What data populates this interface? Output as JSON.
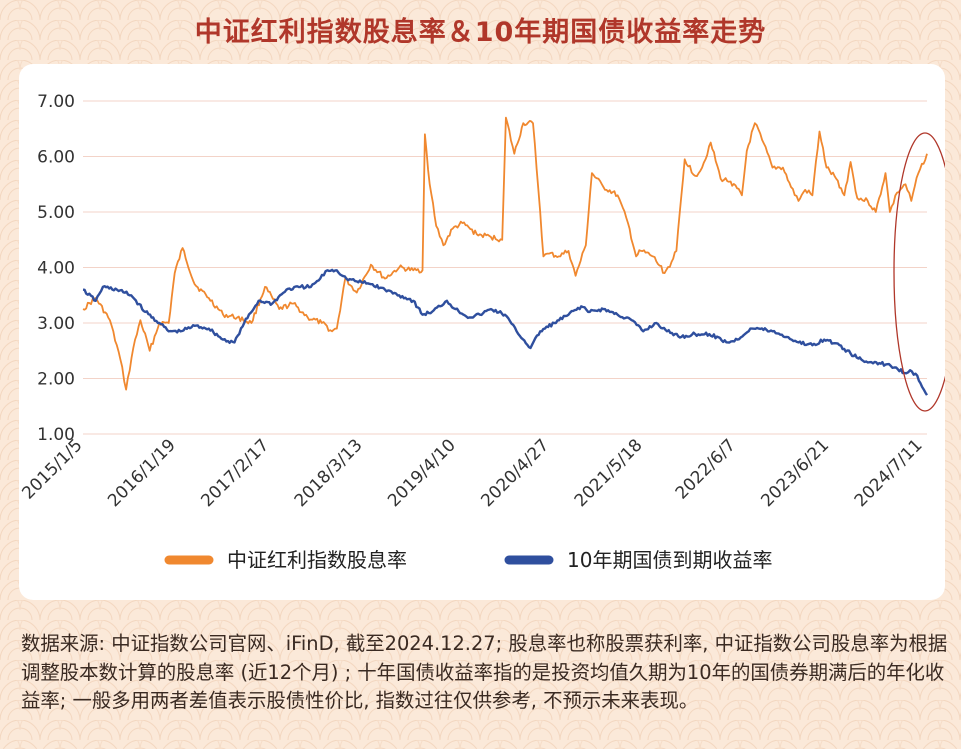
{
  "title": "中证红利指数股息率＆10年期国债收益率走势",
  "footnote": "数据来源: 中证指数公司官网、iFinD, 截至2024.12.27; 股息率也称股票获利率, 中证指数公司股息率为根据调整股本数计算的股息率 (近12个月) ; 十年国债收益率指的是投资均值久期为10年的国债券期满后的年化收益率; 一般多用两者差值表示股债性价比, 指数过往仅供参考, 不预示未来表现。",
  "colors": {
    "background": "#fbe9d9",
    "title": "#b0372a",
    "dividend_series": "#f0882f",
    "bond_series": "#2f4f9e",
    "highlight_ellipse": "#b0372a",
    "gridline": "#f3d3c8"
  },
  "chart_data": {
    "type": "line",
    "title": "中证红利指数股息率＆10年期国债收益率走势",
    "xlabel": "",
    "ylabel": "",
    "ylim": [
      1.0,
      7.0
    ],
    "yticks": [
      "1.00",
      "2.00",
      "3.00",
      "4.00",
      "5.00",
      "6.00",
      "7.00"
    ],
    "x_tick_labels": [
      "2015/1/5",
      "2016/1/19",
      "2017/2/17",
      "2018/3/13",
      "2019/4/10",
      "2020/4/27",
      "2021/5/18",
      "2022/6/7",
      "2023/6/21",
      "2024/7/11"
    ],
    "x_range": [
      "2015-01-05",
      "2024-12-27"
    ],
    "grid": "horizontal",
    "legend_position": "bottom-center",
    "annotation": "red ellipse highlighting the latest period (late 2024)",
    "series": [
      {
        "name": "中证红利指数股息率",
        "color": "#f0882f",
        "x": [
          "2015-01-05",
          "2015-03-01",
          "2015-05-01",
          "2015-06-15",
          "2015-07-10",
          "2015-08-10",
          "2015-09-10",
          "2015-10-20",
          "2015-12-01",
          "2016-01-10",
          "2016-02-05",
          "2016-03-10",
          "2016-05-01",
          "2016-07-01",
          "2016-09-01",
          "2016-11-01",
          "2017-01-01",
          "2017-03-01",
          "2017-05-01",
          "2017-07-01",
          "2017-09-01",
          "2017-11-01",
          "2017-12-15",
          "2018-01-05",
          "2018-02-10",
          "2018-04-01",
          "2018-06-01",
          "2018-08-01",
          "2018-10-01",
          "2018-12-01",
          "2019-01-10",
          "2019-01-20",
          "2019-02-10",
          "2019-03-10",
          "2019-04-10",
          "2019-05-20",
          "2019-07-01",
          "2019-09-01",
          "2019-11-01",
          "2019-12-20",
          "2020-01-05",
          "2020-02-10",
          "2020-03-20",
          "2020-05-01",
          "2020-06-01",
          "2020-06-15",
          "2020-07-10",
          "2020-08-20",
          "2020-10-01",
          "2020-11-01",
          "2020-12-15",
          "2021-01-10",
          "2021-03-01",
          "2021-05-01",
          "2021-06-15",
          "2021-07-20",
          "2021-08-10",
          "2021-10-01",
          "2021-11-20",
          "2021-12-20",
          "2022-01-10",
          "2022-02-15",
          "2022-04-01",
          "2022-05-01",
          "2022-06-07",
          "2022-07-20",
          "2022-09-01",
          "2022-10-20",
          "2022-11-10",
          "2022-12-15",
          "2023-01-15",
          "2023-03-01",
          "2023-04-15",
          "2023-05-20",
          "2023-06-21",
          "2023-07-20",
          "2023-08-20",
          "2023-09-20",
          "2023-10-20",
          "2023-12-01",
          "2024-01-05",
          "2024-02-01",
          "2024-03-01",
          "2024-04-15",
          "2024-05-20",
          "2024-07-01",
          "2024-07-20",
          "2024-08-20",
          "2024-09-25",
          "2024-10-20",
          "2024-11-20",
          "2024-12-27"
        ],
        "values": [
          3.25,
          3.45,
          3.05,
          2.35,
          1.8,
          2.55,
          3.05,
          2.5,
          3.0,
          3.0,
          3.9,
          4.35,
          3.7,
          3.45,
          3.15,
          3.1,
          3.0,
          3.65,
          3.25,
          3.35,
          3.1,
          3.0,
          2.85,
          2.9,
          3.8,
          3.55,
          4.05,
          3.8,
          4.0,
          3.95,
          3.95,
          6.4,
          5.5,
          4.75,
          4.4,
          4.7,
          4.8,
          4.6,
          4.55,
          4.5,
          6.7,
          6.05,
          6.6,
          6.6,
          5.0,
          4.2,
          4.25,
          4.2,
          4.3,
          3.85,
          4.4,
          5.7,
          5.45,
          5.3,
          4.8,
          4.2,
          4.3,
          4.2,
          3.9,
          4.1,
          4.3,
          5.95,
          5.65,
          5.8,
          6.25,
          5.6,
          5.55,
          5.3,
          6.1,
          6.6,
          6.3,
          5.8,
          5.8,
          5.45,
          5.2,
          5.4,
          5.3,
          6.45,
          5.8,
          5.6,
          5.3,
          5.9,
          5.25,
          5.2,
          5.0,
          5.7,
          5.0,
          5.35,
          5.5,
          5.2,
          5.7,
          6.05
        ]
      },
      {
        "name": "10年期国债到期收益率",
        "color": "#2f4f9e",
        "x": [
          "2015-01-05",
          "2015-03-01",
          "2015-04-01",
          "2015-06-01",
          "2015-08-01",
          "2015-10-01",
          "2015-12-01",
          "2016-01-10",
          "2016-03-01",
          "2016-05-01",
          "2016-07-01",
          "2016-09-01",
          "2016-10-20",
          "2016-12-01",
          "2017-02-01",
          "2017-04-01",
          "2017-06-01",
          "2017-08-01",
          "2017-09-15",
          "2017-10-25",
          "2017-11-25",
          "2018-01-05",
          "2018-02-15",
          "2018-04-01",
          "2018-06-01",
          "2018-08-01",
          "2018-10-01",
          "2018-12-01",
          "2019-01-10",
          "2019-02-20",
          "2019-04-25",
          "2019-06-01",
          "2019-08-01",
          "2019-09-15",
          "2019-11-01",
          "2020-01-01",
          "2020-02-20",
          "2020-04-20",
          "2020-06-01",
          "2020-08-01",
          "2020-10-01",
          "2020-11-25",
          "2021-01-01",
          "2021-03-01",
          "2021-05-01",
          "2021-07-01",
          "2021-08-20",
          "2021-10-15",
          "2021-12-01",
          "2022-02-01",
          "2022-04-01",
          "2022-06-01",
          "2022-08-20",
          "2022-10-01",
          "2022-11-25",
          "2023-01-01",
          "2023-03-01",
          "2023-05-01",
          "2023-06-21",
          "2023-08-20",
          "2023-10-10",
          "2023-12-15",
          "2024-02-01",
          "2024-04-01",
          "2024-05-15",
          "2024-07-01",
          "2024-08-15",
          "2024-09-20",
          "2024-10-15",
          "2024-11-15",
          "2024-12-27"
        ],
        "values": [
          3.6,
          3.4,
          3.65,
          3.6,
          3.5,
          3.2,
          3.0,
          2.85,
          2.85,
          2.95,
          2.9,
          2.7,
          2.65,
          3.0,
          3.4,
          3.35,
          3.6,
          3.65,
          3.65,
          3.8,
          3.95,
          3.95,
          3.8,
          3.75,
          3.7,
          3.6,
          3.5,
          3.4,
          3.15,
          3.2,
          3.4,
          3.25,
          3.1,
          3.15,
          3.25,
          3.15,
          2.85,
          2.55,
          2.85,
          3.0,
          3.15,
          3.3,
          3.2,
          3.25,
          3.15,
          3.05,
          2.85,
          3.0,
          2.85,
          2.75,
          2.8,
          2.8,
          2.65,
          2.7,
          2.9,
          2.9,
          2.85,
          2.75,
          2.65,
          2.6,
          2.7,
          2.6,
          2.45,
          2.3,
          2.3,
          2.25,
          2.2,
          2.1,
          2.15,
          2.05,
          1.7
        ]
      }
    ]
  }
}
